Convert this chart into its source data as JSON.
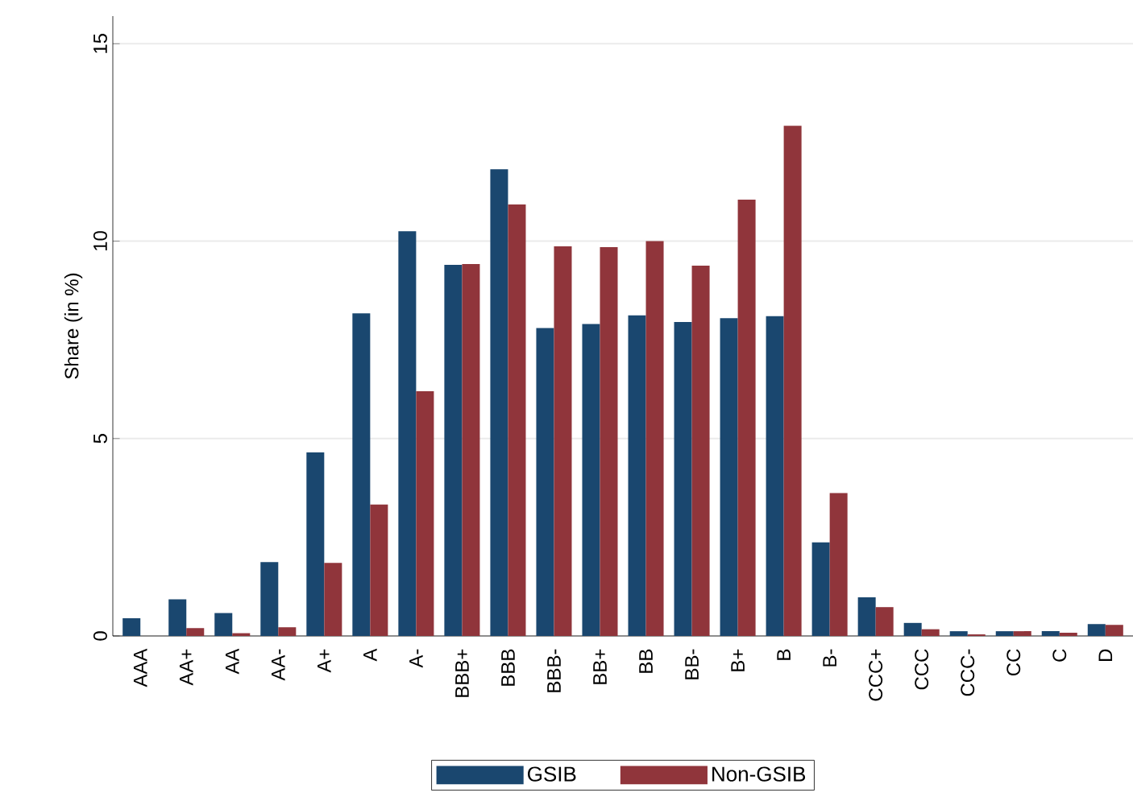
{
  "chart_data": {
    "type": "bar",
    "ylabel": "Share (in %)",
    "categories": [
      "AAA",
      "AA+",
      "AA",
      "AA-",
      "A+",
      "A",
      "A-",
      "BBB+",
      "BBB",
      "BBB-",
      "BB+",
      "BB",
      "BB-",
      "B+",
      "B",
      "B-",
      "CCC+",
      "CCC",
      "CCC-",
      "CC",
      "C",
      "D"
    ],
    "series": [
      {
        "name": "GSIB",
        "color": "#1a476f",
        "values": [
          0.45,
          0.93,
          0.58,
          1.87,
          4.65,
          8.17,
          10.25,
          9.4,
          11.82,
          7.8,
          7.9,
          8.12,
          7.95,
          8.05,
          8.1,
          2.37,
          0.98,
          0.33,
          0.12,
          0.12,
          0.12,
          0.3
        ]
      },
      {
        "name": "Non-GSIB",
        "color": "#90353b",
        "values": [
          0,
          0.2,
          0.07,
          0.22,
          1.85,
          3.33,
          6.2,
          9.42,
          10.93,
          9.87,
          9.85,
          10.0,
          9.38,
          11.05,
          12.92,
          3.62,
          0.73,
          0.17,
          0.04,
          0.12,
          0.08,
          0.28
        ]
      }
    ],
    "ylim": [
      0,
      15.7
    ],
    "yticks": [
      0,
      5,
      10,
      15
    ],
    "grid": "y",
    "legend": "bottom"
  }
}
